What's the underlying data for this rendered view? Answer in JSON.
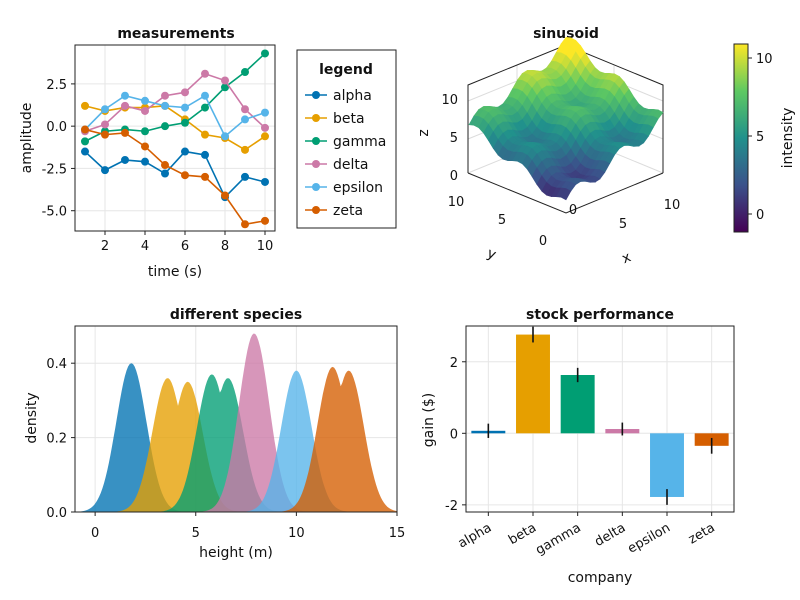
{
  "colors": {
    "alpha": "#0072b2",
    "beta": "#e69f00",
    "gamma": "#009e73",
    "delta": "#cc79a7",
    "epsilon": "#56b4e9",
    "zeta": "#d55e00"
  },
  "chart_data": [
    {
      "type": "line",
      "title": "measurements",
      "xlabel": "time (s)",
      "ylabel": "amplitude",
      "xlim": [
        0.5,
        10.5
      ],
      "ylim": [
        -6.2,
        4.8
      ],
      "xticks": [
        2,
        4,
        6,
        8,
        10
      ],
      "xticklabels": [
        "2",
        "4",
        "6",
        "8",
        "10"
      ],
      "yticks": [
        -5.0,
        -2.5,
        0.0,
        2.5
      ],
      "yticklabels": [
        "-5.0",
        "-2.5",
        "0.0",
        "2.5"
      ],
      "grid": true,
      "legend": {
        "title": "legend",
        "position": "right"
      },
      "x": [
        1,
        2,
        3,
        4,
        5,
        6,
        7,
        8,
        9,
        10
      ],
      "series": [
        {
          "name": "alpha",
          "color": "#0072b2",
          "values": [
            -1.5,
            -2.6,
            -2.0,
            -2.1,
            -2.8,
            -1.5,
            -1.7,
            -4.2,
            -3.0,
            -3.3
          ]
        },
        {
          "name": "beta",
          "color": "#e69f00",
          "values": [
            1.2,
            0.9,
            1.1,
            1.1,
            1.2,
            0.4,
            -0.5,
            -0.7,
            -1.4,
            -0.6
          ]
        },
        {
          "name": "gamma",
          "color": "#009e73",
          "values": [
            -0.9,
            -0.3,
            -0.2,
            -0.3,
            0.0,
            0.2,
            1.1,
            2.3,
            3.2,
            4.3
          ]
        },
        {
          "name": "delta",
          "color": "#cc79a7",
          "values": [
            -0.3,
            0.1,
            1.2,
            0.9,
            1.8,
            2.0,
            3.1,
            2.7,
            1.0,
            -0.1
          ]
        },
        {
          "name": "epsilon",
          "color": "#56b4e9",
          "values": [
            -0.2,
            1.0,
            1.8,
            1.5,
            1.2,
            1.1,
            1.8,
            -0.6,
            0.4,
            0.8
          ]
        },
        {
          "name": "zeta",
          "color": "#d55e00",
          "values": [
            -0.2,
            -0.5,
            -0.4,
            -1.2,
            -2.3,
            -2.9,
            -3.0,
            -4.1,
            -5.8,
            -5.6
          ]
        }
      ]
    },
    {
      "type": "surface",
      "title": "sinusoid",
      "xlabel": "x",
      "ylabel": "y",
      "zlabel": "z",
      "xticks": [
        "0",
        "5",
        "10"
      ],
      "yticks": [
        "0",
        "5",
        "10"
      ],
      "zticks": [
        "0",
        "5",
        "10"
      ],
      "xlim": [
        0,
        10
      ],
      "ylim": [
        0,
        10
      ],
      "zlim": [
        -1,
        11
      ],
      "colormap": "viridis",
      "colorbar": {
        "label": "intensity",
        "ticks": [
          "0",
          "5",
          "10"
        ],
        "limits": [
          -1,
          11
        ]
      }
    },
    {
      "type": "area",
      "title": "different species",
      "xlabel": "height (m)",
      "ylabel": "density",
      "xlim": [
        -1,
        15
      ],
      "ylim": [
        0,
        0.5
      ],
      "xticks": [
        0,
        5,
        10,
        15
      ],
      "xticklabels": [
        "0",
        "5",
        "10",
        "15"
      ],
      "yticks": [
        0.0,
        0.2,
        0.4
      ],
      "yticklabels": [
        "0.0",
        "0.2",
        "0.4"
      ],
      "grid": true,
      "series": [
        {
          "name": "alpha",
          "color": "#0072b2",
          "peaks": [
            [
              1.8,
              0.4
            ]
          ]
        },
        {
          "name": "beta",
          "color": "#e69f00",
          "peaks": [
            [
              3.6,
              0.36
            ],
            [
              4.6,
              0.35
            ]
          ]
        },
        {
          "name": "gamma",
          "color": "#009e73",
          "peaks": [
            [
              5.8,
              0.37
            ],
            [
              6.6,
              0.36
            ]
          ]
        },
        {
          "name": "delta",
          "color": "#cc79a7",
          "peaks": [
            [
              7.9,
              0.48
            ]
          ]
        },
        {
          "name": "epsilon",
          "color": "#56b4e9",
          "peaks": [
            [
              10.0,
              0.38
            ]
          ]
        },
        {
          "name": "zeta",
          "color": "#d55e00",
          "peaks": [
            [
              11.8,
              0.39
            ],
            [
              12.6,
              0.38
            ]
          ]
        }
      ]
    },
    {
      "type": "bar",
      "title": "stock performance",
      "xlabel": "company",
      "ylabel": "gain ($)",
      "ylim": [
        -2.2,
        3.0
      ],
      "yticks": [
        -2,
        0,
        2
      ],
      "yticklabels": [
        "-2",
        "0",
        "2"
      ],
      "grid": true,
      "categories": [
        "alpha",
        "beta",
        "gamma",
        "delta",
        "epsilon",
        "zeta"
      ],
      "values": [
        0.07,
        2.76,
        1.63,
        0.12,
        -1.78,
        -0.35
      ],
      "errors": [
        0.2,
        0.22,
        0.2,
        0.18,
        0.22,
        0.22
      ],
      "colors": [
        "#0072b2",
        "#e69f00",
        "#009e73",
        "#cc79a7",
        "#56b4e9",
        "#d55e00"
      ]
    }
  ]
}
